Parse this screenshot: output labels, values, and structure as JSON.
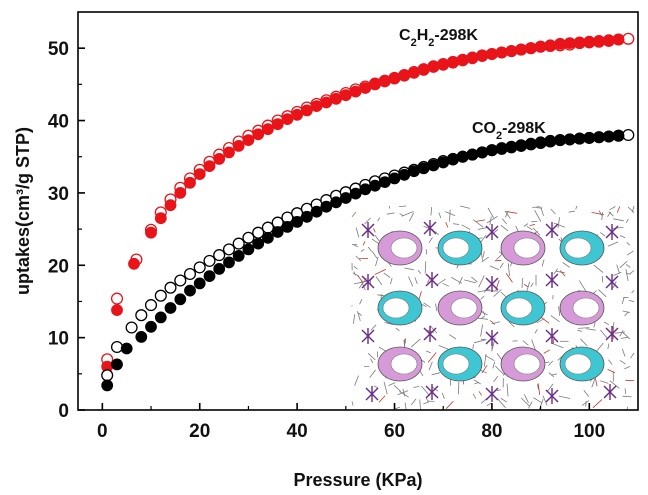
{
  "chart_data": {
    "type": "scatter",
    "xlabel": "Pressure (KPa)",
    "ylabel": "uptakes(cm³/g STP)",
    "xlim": [
      -5,
      110
    ],
    "ylim": [
      0,
      55
    ],
    "xticks": [
      0,
      20,
      40,
      60,
      80,
      100
    ],
    "yticks": [
      0,
      10,
      20,
      30,
      40,
      50
    ],
    "grid": false,
    "series": [
      {
        "name": "C2H2-298K",
        "label_main": "C",
        "label_sub1": "2",
        "label_mid": "H",
        "label_sub2": "2",
        "label_tail": "-298K",
        "color": "#e8141a",
        "adsorption": {
          "x": [
            1,
            3,
            6.5,
            10,
            12,
            14,
            16,
            18,
            20,
            22,
            24,
            26,
            28,
            30,
            32,
            34,
            36,
            38,
            40,
            42,
            44,
            46,
            48,
            50,
            52,
            54,
            56,
            58,
            60,
            62,
            64,
            66,
            68,
            70,
            72,
            74,
            76,
            78,
            80,
            82,
            84,
            86,
            88,
            90,
            92,
            94,
            96,
            98,
            100,
            102,
            104,
            106
          ],
          "y": [
            6,
            13.8,
            20.2,
            24.5,
            26.5,
            28.3,
            30,
            31.4,
            32.6,
            33.7,
            34.7,
            35.6,
            36.5,
            37.3,
            38.1,
            38.8,
            39.5,
            40.2,
            40.8,
            41.4,
            42,
            42.5,
            43,
            43.5,
            44,
            44.5,
            45,
            45.4,
            45.8,
            46.2,
            46.6,
            47,
            47.4,
            47.7,
            48,
            48.3,
            48.6,
            48.9,
            49.2,
            49.4,
            49.6,
            49.8,
            50,
            50.2,
            50.4,
            50.6,
            50.7,
            50.8,
            50.9,
            51,
            51.1,
            51.2
          ]
        },
        "desorption": {
          "x": [
            1,
            3,
            7,
            10,
            12,
            14,
            16,
            18,
            20,
            22,
            24,
            26,
            28,
            30,
            32,
            34,
            36,
            38,
            40,
            42,
            44,
            46,
            48,
            50,
            52,
            54,
            56,
            58,
            60,
            62,
            64,
            66,
            68,
            70,
            72,
            74,
            76,
            78,
            80,
            82,
            84,
            86,
            88,
            90,
            92,
            94,
            96,
            98,
            100,
            102,
            104,
            106,
            108
          ],
          "y": [
            7,
            15.4,
            20.8,
            24.9,
            27.3,
            29.1,
            30.7,
            32,
            33.2,
            34.3,
            35.3,
            36.2,
            37.1,
            37.9,
            38.6,
            39.3,
            40,
            40.6,
            41.2,
            41.8,
            42.3,
            42.8,
            43.3,
            43.8,
            44.3,
            44.7,
            45.1,
            45.5,
            45.9,
            46.3,
            46.7,
            47.1,
            47.5,
            47.8,
            48.1,
            48.4,
            48.7,
            49,
            49.2,
            49.4,
            49.6,
            49.8,
            50,
            50.2,
            50.3,
            50.4,
            50.5,
            50.7,
            50.8,
            50.9,
            51,
            51.2,
            51.3
          ]
        }
      },
      {
        "name": "CO2-298K",
        "label_main": "CO",
        "label_sub1": "2",
        "label_tail": "-298K",
        "color": "#000000",
        "adsorption": {
          "x": [
            1,
            3,
            5,
            8,
            10,
            12,
            14,
            16,
            18,
            20,
            22,
            24,
            26,
            28,
            30,
            32,
            34,
            36,
            38,
            40,
            42,
            44,
            46,
            48,
            50,
            52,
            54,
            56,
            58,
            60,
            62,
            64,
            66,
            68,
            70,
            72,
            74,
            76,
            78,
            80,
            82,
            84,
            86,
            88,
            90,
            92,
            94,
            96,
            98,
            100,
            102,
            104,
            106
          ],
          "y": [
            3.4,
            6.3,
            8.5,
            10.1,
            11.5,
            12.8,
            14.1,
            15.3,
            16.5,
            17.5,
            18.5,
            19.5,
            20.4,
            21.3,
            22.2,
            23,
            23.8,
            24.6,
            25.3,
            26,
            26.7,
            27.4,
            28.1,
            28.7,
            29.3,
            29.9,
            30.5,
            31,
            31.5,
            32,
            32.5,
            33,
            33.4,
            33.8,
            34.2,
            34.6,
            35,
            35.3,
            35.6,
            35.9,
            36.2,
            36.4,
            36.6,
            36.8,
            37,
            37.2,
            37.3,
            37.4,
            37.5,
            37.6,
            37.7,
            37.8,
            37.9
          ]
        },
        "desorption": {
          "x": [
            1,
            3,
            6,
            8,
            10,
            12,
            14,
            16,
            18,
            20,
            22,
            24,
            26,
            28,
            30,
            32,
            34,
            36,
            38,
            40,
            42,
            44,
            46,
            48,
            50,
            52,
            54,
            56,
            58,
            60,
            62,
            64,
            66,
            68,
            70,
            72,
            74,
            76,
            78,
            80,
            82,
            84,
            86,
            88,
            90,
            92,
            94,
            96,
            98,
            100,
            102,
            104,
            106,
            108
          ],
          "y": [
            4.8,
            8.7,
            11.4,
            13.1,
            14.5,
            15.8,
            16.9,
            17.9,
            18.8,
            19.7,
            20.6,
            21.4,
            22.2,
            23,
            23.8,
            24.5,
            25.2,
            25.9,
            26.6,
            27.2,
            27.8,
            28.4,
            29,
            29.6,
            30.1,
            30.6,
            31.1,
            31.6,
            32,
            32.4,
            32.8,
            33.2,
            33.6,
            34,
            34.4,
            34.7,
            35,
            35.3,
            35.6,
            35.9,
            36.1,
            36.3,
            36.5,
            36.7,
            36.9,
            37.1,
            37.3,
            37.4,
            37.5,
            37.6,
            37.7,
            37.8,
            37.9,
            38
          ]
        }
      }
    ],
    "inset": {
      "description_icon": "crystal-structure-icon"
    }
  }
}
